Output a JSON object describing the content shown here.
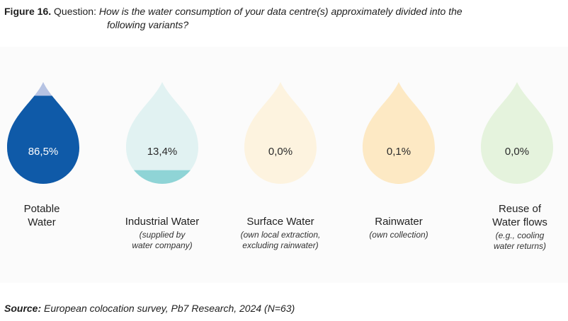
{
  "caption": {
    "figure_label": "Figure 16.",
    "prefix": "Question:",
    "question_line1": "How is the water consumption of your data centre(s) approximately divided into the",
    "question_line2": "following variants?"
  },
  "chart_data": {
    "type": "proportional-fill pictogram",
    "title": "How is the water consumption of your data centre(s) approximately divided into the following variants?",
    "unit": "%",
    "categories": [
      {
        "name_line1": "Potable",
        "name_line2": "Water",
        "note_line1": "",
        "note_line2": "",
        "value": 86.5,
        "value_label": "86,5%",
        "fill_color": "#0f5aa8",
        "empty_color": "#b6c3e3"
      },
      {
        "name_line1": "Industrial Water",
        "name_line2": "",
        "note_line1": "(supplied by",
        "note_line2": "water company)",
        "value": 13.4,
        "value_label": "13,4%",
        "fill_color": "#8fd4d6",
        "empty_color": "#e1f2f2"
      },
      {
        "name_line1": "Surface Water",
        "name_line2": "",
        "note_line1": "(own local extraction,",
        "note_line2": "excluding rainwater)",
        "value": 0.0,
        "value_label": "0,0%",
        "fill_color": "#f6e3b8",
        "empty_color": "#fdf3df"
      },
      {
        "name_line1": "Rainwater",
        "name_line2": "",
        "note_line1": "(own collection)",
        "note_line2": "",
        "value": 0.1,
        "value_label": "0,1%",
        "fill_color": "#f3cc6e",
        "empty_color": "#fde9c4"
      },
      {
        "name_line1": "Reuse of",
        "name_line2": "Water flows",
        "note_line1": "(e.g., cooling",
        "note_line2": "water returns)",
        "value": 0.0,
        "value_label": "0,0%",
        "fill_color": "#cfe9c7",
        "empty_color": "#e5f3dd"
      }
    ]
  },
  "source": {
    "label": "Source:",
    "text": "European colocation survey, Pb7 Research, 2024 (N=63)"
  }
}
